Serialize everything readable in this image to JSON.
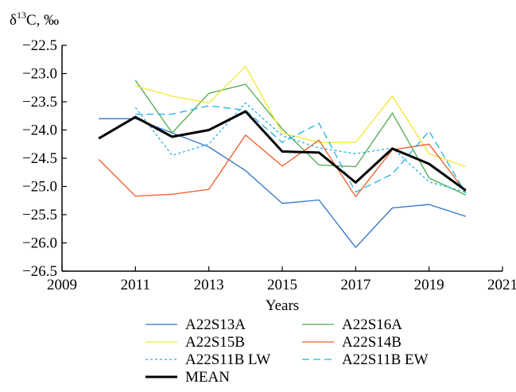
{
  "chart_data": {
    "type": "line",
    "ylabel_main": "δ",
    "ylabel_sup": "13",
    "ylabel_rest": "C, ‰",
    "xlabel": "Years",
    "xlim": [
      2009,
      2021
    ],
    "ylim": [
      -26.5,
      -22.5
    ],
    "x_ticks": [
      "2009",
      "2011",
      "2013",
      "2015",
      "2017",
      "2019",
      "2021"
    ],
    "y_ticks": [
      "−22.5",
      "−23.0",
      "−23.5",
      "−24.0",
      "−24.5",
      "−25.0",
      "−25.5",
      "−26.0",
      "−26.5"
    ],
    "legend_position": "below",
    "series": [
      {
        "name": "A22S13A",
        "color": "#2f73c8",
        "dash": "solid",
        "width": 1.3,
        "x": [
          2010,
          2011,
          2012,
          2013,
          2014,
          2015,
          2016,
          2017,
          2018,
          2019,
          2020
        ],
        "y": [
          -23.8,
          -23.8,
          -24.05,
          -24.3,
          -24.72,
          -25.3,
          -25.24,
          -26.08,
          -25.38,
          -25.32,
          -25.53
        ]
      },
      {
        "name": "A22S16A",
        "color": "#4caa4c",
        "dash": "solid",
        "width": 1.3,
        "x": [
          2011,
          2012,
          2013,
          2014,
          2015,
          2016,
          2017,
          2018,
          2019,
          2020
        ],
        "y": [
          -23.12,
          -24.05,
          -23.35,
          -23.19,
          -23.98,
          -24.62,
          -24.65,
          -23.7,
          -24.85,
          -25.15
        ]
      },
      {
        "name": "A22S15B",
        "color": "#f2e830",
        "dash": "solid",
        "width": 1.3,
        "x": [
          2011,
          2012,
          2013,
          2014,
          2015,
          2016,
          2017,
          2018,
          2019,
          2020
        ],
        "y": [
          -23.22,
          -23.4,
          -23.52,
          -22.87,
          -24.05,
          -24.22,
          -24.22,
          -23.4,
          -24.42,
          -24.65
        ]
      },
      {
        "name": "A22S14B",
        "color": "#f05a28",
        "dash": "solid",
        "width": 1.3,
        "x": [
          2010,
          2011,
          2012,
          2013,
          2014,
          2015,
          2016,
          2017,
          2018,
          2019,
          2020
        ],
        "y": [
          -24.52,
          -25.17,
          -25.14,
          -25.05,
          -24.09,
          -24.64,
          -24.18,
          -25.18,
          -24.35,
          -24.25,
          -25.1
        ]
      },
      {
        "name": "A22S11B LW",
        "color": "#1fb0e8",
        "dash": "3,3",
        "width": 1.3,
        "x": [
          2011,
          2012,
          2013,
          2014,
          2015,
          2016,
          2017,
          2018,
          2019,
          2020
        ],
        "y": [
          -23.6,
          -24.45,
          -24.25,
          -23.52,
          -24.1,
          -24.32,
          -24.42,
          -24.32,
          -24.92,
          -25.1
        ]
      },
      {
        "name": "A22S11B EW",
        "color": "#1fb0e8",
        "dash": "9,5",
        "width": 1.3,
        "x": [
          2011,
          2012,
          2013,
          2014,
          2015,
          2016,
          2017,
          2018,
          2019,
          2020
        ],
        "y": [
          -23.72,
          -23.72,
          -23.57,
          -23.65,
          -24.22,
          -23.88,
          -25.1,
          -24.78,
          -24.02,
          -25.12
        ]
      },
      {
        "name": "MEAN",
        "color": "#000000",
        "dash": "solid",
        "width": 3,
        "x": [
          2010,
          2011,
          2012,
          2013,
          2014,
          2015,
          2016,
          2017,
          2018,
          2019,
          2020
        ],
        "y": [
          -24.15,
          -23.77,
          -24.12,
          -24.0,
          -23.67,
          -24.38,
          -24.4,
          -24.93,
          -24.33,
          -24.6,
          -25.07
        ]
      }
    ]
  }
}
